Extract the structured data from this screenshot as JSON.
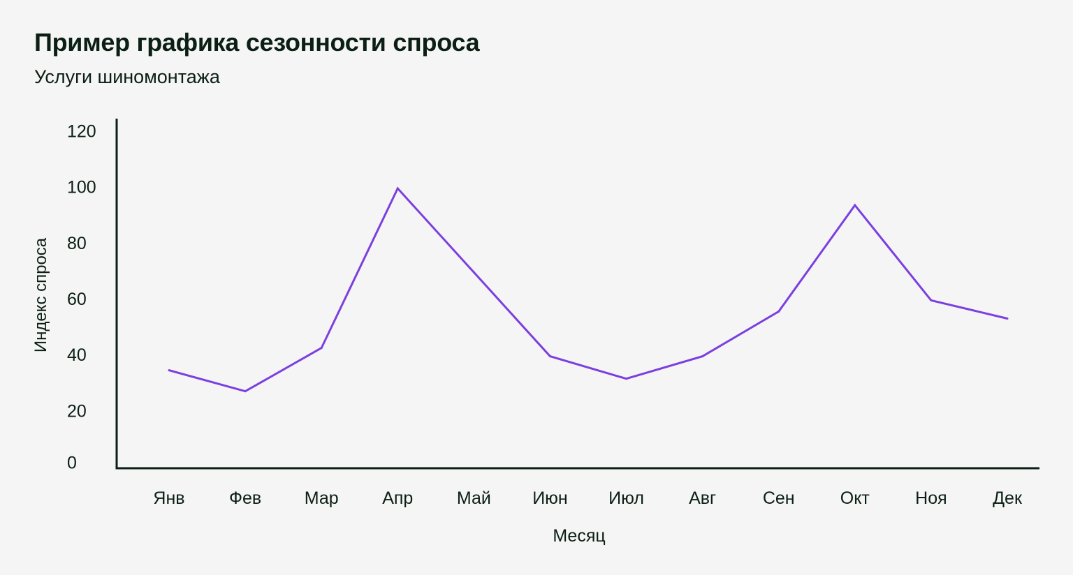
{
  "chart_data": {
    "type": "line",
    "title": "Пример графика сезонности спроса",
    "subtitle": "Услуги шиномонтажа",
    "xlabel": "Месяц",
    "ylabel": "Индекс спроса",
    "categories": [
      "Янв",
      "Фев",
      "Мар",
      "Апр",
      "Май",
      "Июн",
      "Июл",
      "Авг",
      "Сен",
      "Окт",
      "Ноя",
      "Дек"
    ],
    "series": [
      {
        "values": [
          35,
          27.5,
          43,
          100,
          70,
          40,
          32,
          40,
          56,
          94,
          60,
          53.5
        ]
      }
    ],
    "yticks": [
      0,
      20,
      40,
      60,
      80,
      100,
      120
    ],
    "ylim": [
      0,
      120
    ],
    "grid": false,
    "legend": "none",
    "line_color": "#7b3fe0",
    "axis_color": "#0b1f14",
    "background_color": "#f5f5f5"
  }
}
